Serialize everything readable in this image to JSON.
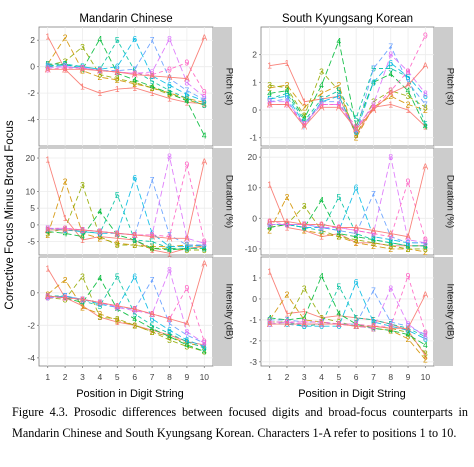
{
  "figure": {
    "caption": "Figure 4.3. Prosodic differences between focused digits and broad-focus counterparts in Mandarin Chinese and South Kyungsang Korean. Characters 1-A refer to positions 1 to 10.",
    "caption_suffix": ".",
    "colors": {
      "s1": "#F8766D",
      "s2": "#D39200",
      "s3": "#93AA00",
      "s4": "#00BA38",
      "s5": "#00C19F",
      "s6": "#00B9E3",
      "s7": "#619CFF",
      "s8": "#DB72FB",
      "s9": "#FF61C3",
      "sA": "#F8766D",
      "strip_bg": "#cccccc",
      "panel_bg": "#ffffff",
      "grid": "#ececec"
    }
  },
  "chart_data": {
    "type": "line",
    "xlabel": "Position in Digit String",
    "ylabel": "Corrective Focus Minus Broad Focus",
    "column_titles": [
      "Mandarin Chinese",
      "South Kyungsang Korean"
    ],
    "row_titles": [
      "Pitch (st)",
      "Duration (%)",
      "Intensity (dB)"
    ],
    "x": [
      1,
      2,
      3,
      4,
      5,
      6,
      7,
      8,
      9,
      10
    ],
    "x_tick_labels": [
      "1",
      "2",
      "3",
      "4",
      "5",
      "6",
      "7",
      "8",
      "9",
      "10"
    ],
    "series_labels": [
      "1",
      "2",
      "3",
      "4",
      "5",
      "6",
      "7",
      "8",
      "9",
      "A"
    ],
    "grid": true,
    "panels": [
      {
        "column": 0,
        "row": 0,
        "ylim": [
          -6,
          3
        ],
        "yticks": [
          -4,
          -2,
          0,
          2
        ],
        "series": [
          {
            "label": "1",
            "values": [
              2.3,
              -0.2,
              -1.5,
              -2.0,
              -1.7,
              -1.6,
              -2.0,
              -2.4,
              -2.7,
              -2.8
            ]
          },
          {
            "label": "2",
            "values": [
              0.2,
              2.2,
              -0.3,
              -0.8,
              -1.0,
              -1.3,
              -1.6,
              -2.0,
              -2.4,
              -2.7
            ]
          },
          {
            "label": "3",
            "values": [
              0.1,
              0.4,
              1.5,
              -0.6,
              -0.9,
              -1.2,
              -1.6,
              -2.1,
              -2.5,
              -2.9
            ]
          },
          {
            "label": "4",
            "values": [
              0.0,
              0.2,
              -0.2,
              2.1,
              -0.5,
              -1.0,
              -1.5,
              -2.0,
              -2.6,
              -5.2
            ]
          },
          {
            "label": "5",
            "values": [
              0.2,
              0.2,
              0.0,
              -0.2,
              2.0,
              -0.3,
              -1.1,
              -1.8,
              -2.4,
              -2.9
            ]
          },
          {
            "label": "6",
            "values": [
              0.1,
              0.1,
              0.0,
              -0.2,
              0.0,
              2.1,
              -0.7,
              -1.4,
              -2.1,
              -2.6
            ]
          },
          {
            "label": "7",
            "values": [
              0.0,
              0.0,
              -0.1,
              -0.3,
              -0.3,
              -0.2,
              2.0,
              -0.9,
              -1.8,
              -2.5
            ]
          },
          {
            "label": "8",
            "values": [
              -0.1,
              0.0,
              -0.1,
              -0.3,
              -0.4,
              -0.5,
              -0.4,
              2.1,
              -1.2,
              -2.3
            ]
          },
          {
            "label": "9",
            "values": [
              -0.2,
              -0.1,
              -0.1,
              -0.3,
              -0.4,
              -0.5,
              -0.6,
              -0.2,
              0.3,
              -1.9
            ]
          },
          {
            "label": "A",
            "values": [
              -0.2,
              -0.2,
              -0.2,
              -0.3,
              -0.4,
              -0.6,
              -0.7,
              -0.8,
              -0.9,
              2.2
            ]
          }
        ]
      },
      {
        "column": 0,
        "row": 1,
        "ylim": [
          -9,
          23
        ],
        "yticks": [
          -5,
          0,
          5,
          10,
          20
        ],
        "series": [
          {
            "label": "1",
            "values": [
              19.5,
              2.0,
              -4.5,
              -3.5,
              -4.0,
              -4.5,
              -7.5,
              -8.5,
              -7.0,
              -6.5
            ]
          },
          {
            "label": "2",
            "values": [
              -3.0,
              13.0,
              -2.5,
              -4.0,
              -5.5,
              -6.0,
              -6.5,
              -6.5,
              -6.0,
              -6.5
            ]
          },
          {
            "label": "3",
            "values": [
              -2.5,
              -1.0,
              12.0,
              -3.5,
              -6.0,
              -6.0,
              -7.0,
              -7.0,
              -7.5,
              -7.5
            ]
          },
          {
            "label": "4",
            "values": [
              -2.0,
              -2.5,
              -3.5,
              4.0,
              -3.0,
              -4.5,
              -7.0,
              -7.5,
              -7.0,
              -7.0
            ]
          },
          {
            "label": "5",
            "values": [
              -1.5,
              -1.5,
              -2.0,
              -2.5,
              9.0,
              -4.5,
              -5.0,
              -7.0,
              -7.0,
              -7.0
            ]
          },
          {
            "label": "6",
            "values": [
              -1.0,
              -1.5,
              -2.0,
              -2.5,
              -2.5,
              14.0,
              -2.5,
              -6.5,
              -6.5,
              -6.0
            ]
          },
          {
            "label": "7",
            "values": [
              -1.0,
              -1.5,
              -1.5,
              -2.0,
              -2.5,
              -3.0,
              13.5,
              -3.0,
              -6.0,
              -6.0
            ]
          },
          {
            "label": "8",
            "values": [
              -1.0,
              -1.0,
              -1.5,
              -2.0,
              -2.5,
              -3.0,
              -3.0,
              20.5,
              -4.0,
              -5.5
            ]
          },
          {
            "label": "9",
            "values": [
              -1.0,
              -1.0,
              -1.5,
              -2.0,
              -2.5,
              -3.0,
              -3.0,
              -3.5,
              18.0,
              -5.0
            ]
          },
          {
            "label": "A",
            "values": [
              -1.5,
              -1.5,
              -1.5,
              -2.0,
              -2.5,
              -3.0,
              -3.5,
              -4.0,
              -4.0,
              19.0
            ]
          }
        ]
      },
      {
        "column": 0,
        "row": 2,
        "ylim": [
          -4.5,
          2.2
        ],
        "yticks": [
          -4,
          -2,
          0
        ],
        "series": [
          {
            "label": "1",
            "values": [
              1.5,
              -0.3,
              -0.8,
              -1.5,
              -1.8,
              -2.0,
              -2.3,
              -2.6,
              -3.0,
              -3.2
            ]
          },
          {
            "label": "2",
            "values": [
              -0.1,
              0.8,
              -0.9,
              -1.3,
              -1.7,
              -2.0,
              -2.4,
              -2.7,
              -3.1,
              -3.3
            ]
          },
          {
            "label": "3",
            "values": [
              -0.3,
              -0.4,
              1.0,
              -1.5,
              -1.6,
              -2.0,
              -2.4,
              -2.9,
              -3.3,
              -3.6
            ]
          },
          {
            "label": "4",
            "values": [
              -0.2,
              -0.3,
              -0.6,
              0.9,
              -1.0,
              -1.6,
              -2.2,
              -2.7,
              -3.2,
              -3.6
            ]
          },
          {
            "label": "5",
            "values": [
              -0.2,
              -0.2,
              -0.5,
              -0.8,
              1.0,
              -1.3,
              -2.0,
              -2.5,
              -3.0,
              -3.4
            ]
          },
          {
            "label": "6",
            "values": [
              -0.3,
              -0.2,
              -0.4,
              -0.7,
              -0.9,
              1.0,
              -1.6,
              -2.3,
              -2.9,
              -3.3
            ]
          },
          {
            "label": "7",
            "values": [
              -0.3,
              -0.2,
              -0.4,
              -0.6,
              -0.9,
              -1.0,
              0.8,
              -1.9,
              -2.6,
              -3.1
            ]
          },
          {
            "label": "8",
            "values": [
              -0.3,
              -0.3,
              -0.4,
              -0.6,
              -0.9,
              -1.1,
              -1.3,
              1.4,
              -2.4,
              -3.1
            ]
          },
          {
            "label": "9",
            "values": [
              -0.2,
              -0.3,
              -0.4,
              -0.6,
              -0.8,
              -1.0,
              -1.3,
              -1.6,
              0.3,
              -3.0
            ]
          },
          {
            "label": "A",
            "values": [
              -0.2,
              -0.3,
              -0.4,
              -0.6,
              -0.8,
              -1.0,
              -1.3,
              -1.6,
              -1.9,
              1.8
            ]
          }
        ]
      },
      {
        "column": 1,
        "row": 0,
        "ylim": [
          -1.3,
          3.0
        ],
        "yticks": [
          -1,
          0,
          1,
          2
        ],
        "series": [
          {
            "label": "1",
            "values": [
              1.6,
              1.7,
              0.3,
              0.4,
              0.5,
              -0.9,
              0.1,
              0.2,
              0.0,
              -0.6
            ]
          },
          {
            "label": "2",
            "values": [
              0.8,
              0.9,
              0.1,
              0.6,
              0.9,
              -1.0,
              0.1,
              0.5,
              0.2,
              0.0
            ]
          },
          {
            "label": "3",
            "values": [
              0.9,
              0.8,
              -0.2,
              1.4,
              0.7,
              -0.9,
              0.3,
              0.7,
              0.5,
              0.1
            ]
          },
          {
            "label": "4",
            "values": [
              0.6,
              0.7,
              -0.3,
              0.9,
              2.5,
              -0.6,
              1.0,
              1.3,
              0.7,
              -0.6
            ]
          },
          {
            "label": "5",
            "values": [
              0.4,
              0.6,
              -0.4,
              0.4,
              0.7,
              -0.3,
              1.5,
              1.5,
              1.2,
              -0.5
            ]
          },
          {
            "label": "6",
            "values": [
              0.4,
              0.5,
              -0.5,
              0.3,
              0.5,
              -0.8,
              1.0,
              1.7,
              1.2,
              0.5
            ]
          },
          {
            "label": "7",
            "values": [
              0.3,
              0.4,
              -0.6,
              0.3,
              0.3,
              -0.8,
              1.5,
              2.3,
              1.0,
              0.2
            ]
          },
          {
            "label": "8",
            "values": [
              0.3,
              0.3,
              -0.5,
              0.2,
              0.2,
              -0.7,
              0.2,
              2.0,
              1.4,
              0.6
            ]
          },
          {
            "label": "9",
            "values": [
              0.2,
              0.2,
              -0.5,
              0.2,
              0.2,
              -0.6,
              0.1,
              0.7,
              1.4,
              2.7
            ]
          },
          {
            "label": "A",
            "values": [
              0.2,
              0.2,
              -0.6,
              0.1,
              0.1,
              -0.7,
              0.0,
              0.6,
              0.9,
              1.6
            ]
          }
        ]
      },
      {
        "column": 1,
        "row": 1,
        "ylim": [
          -12,
          23
        ],
        "yticks": [
          -10,
          0,
          10,
          20
        ],
        "series": [
          {
            "label": "1",
            "values": [
              11.0,
              -3.0,
              -4.0,
              -6.0,
              -5.0,
              -8.0,
              -8.0,
              -9.0,
              -9.0,
              -9.0
            ]
          },
          {
            "label": "2",
            "values": [
              -4.0,
              7.0,
              -4.0,
              -5.0,
              -6.0,
              -8.0,
              -9.0,
              -10.0,
              -10.0,
              -11.0
            ]
          },
          {
            "label": "3",
            "values": [
              -3.0,
              -2.0,
              4.0,
              -4.0,
              -6.0,
              -7.0,
              -8.0,
              -9.0,
              -10.0,
              -10.0
            ]
          },
          {
            "label": "4",
            "values": [
              -3.0,
              -2.0,
              -3.0,
              6.0,
              -5.0,
              -6.0,
              -7.0,
              -8.0,
              -9.0,
              -9.0
            ]
          },
          {
            "label": "5",
            "values": [
              -2.0,
              -2.0,
              -3.0,
              -4.0,
              7.0,
              -5.0,
              -7.0,
              -8.0,
              -9.0,
              -9.0
            ]
          },
          {
            "label": "6",
            "values": [
              -2.0,
              -2.0,
              -3.0,
              -3.0,
              -4.0,
              10.0,
              -6.0,
              -7.0,
              -8.0,
              -8.0
            ]
          },
          {
            "label": "7",
            "values": [
              -2.0,
              -2.0,
              -2.0,
              -3.0,
              -4.0,
              -5.0,
              8.0,
              -6.0,
              -8.0,
              -8.0
            ]
          },
          {
            "label": "8",
            "values": [
              -2.0,
              -2.0,
              -2.0,
              -3.0,
              -3.0,
              -4.0,
              -5.0,
              20.0,
              -7.0,
              -8.0
            ]
          },
          {
            "label": "9",
            "values": [
              -1.0,
              -2.0,
              -2.0,
              -2.0,
              -3.0,
              -4.0,
              -5.0,
              -6.0,
              12.0,
              -7.0
            ]
          },
          {
            "label": "A",
            "values": [
              -1.0,
              -1.0,
              -2.0,
              -2.0,
              -3.0,
              -3.0,
              -4.0,
              -5.0,
              -6.0,
              17.0
            ]
          }
        ]
      },
      {
        "column": 1,
        "row": 2,
        "ylim": [
          -3.2,
          2.0
        ],
        "yticks": [
          -3,
          -2,
          -1,
          0,
          1
        ],
        "series": [
          {
            "label": "1",
            "values": [
              1.3,
              -0.7,
              -0.6,
              -0.9,
              -0.8,
              -0.9,
              -1.0,
              -1.2,
              -1.5,
              -2.7
            ]
          },
          {
            "label": "2",
            "values": [
              -1.0,
              0.2,
              -1.0,
              -1.1,
              -1.2,
              -1.3,
              -1.4,
              -1.5,
              -1.9,
              -2.9
            ]
          },
          {
            "label": "3",
            "values": [
              -1.1,
              -1.1,
              0.5,
              -0.9,
              -1.1,
              -1.3,
              -1.3,
              -1.4,
              -1.6,
              -2.6
            ]
          },
          {
            "label": "4",
            "values": [
              -0.9,
              -1.0,
              -0.9,
              1.1,
              -0.7,
              -1.2,
              -1.4,
              -1.5,
              -1.7,
              -2.2
            ]
          },
          {
            "label": "5",
            "values": [
              -1.1,
              -1.1,
              -1.3,
              -1.2,
              0.6,
              -0.9,
              -1.0,
              -1.2,
              -1.4,
              -1.8
            ]
          },
          {
            "label": "6",
            "values": [
              -1.2,
              -1.2,
              -1.3,
              -1.3,
              -1.3,
              0.8,
              -1.1,
              -1.3,
              -1.5,
              -1.9
            ]
          },
          {
            "label": "7",
            "values": [
              -1.0,
              -1.0,
              -1.1,
              -1.1,
              -1.2,
              -1.2,
              0.4,
              -1.1,
              -1.3,
              -1.7
            ]
          },
          {
            "label": "8",
            "values": [
              -1.2,
              -1.1,
              -1.2,
              -1.2,
              -1.2,
              -1.3,
              -1.4,
              0.5,
              -1.2,
              -1.8
            ]
          },
          {
            "label": "9",
            "values": [
              -1.1,
              -1.1,
              -1.1,
              -1.1,
              -1.2,
              -1.2,
              -1.3,
              -1.3,
              1.1,
              -1.6
            ]
          },
          {
            "label": "A",
            "values": [
              -1.2,
              -1.2,
              -1.2,
              -1.2,
              -1.2,
              -1.3,
              -1.3,
              -1.4,
              -1.4,
              0.2
            ]
          }
        ]
      }
    ]
  }
}
